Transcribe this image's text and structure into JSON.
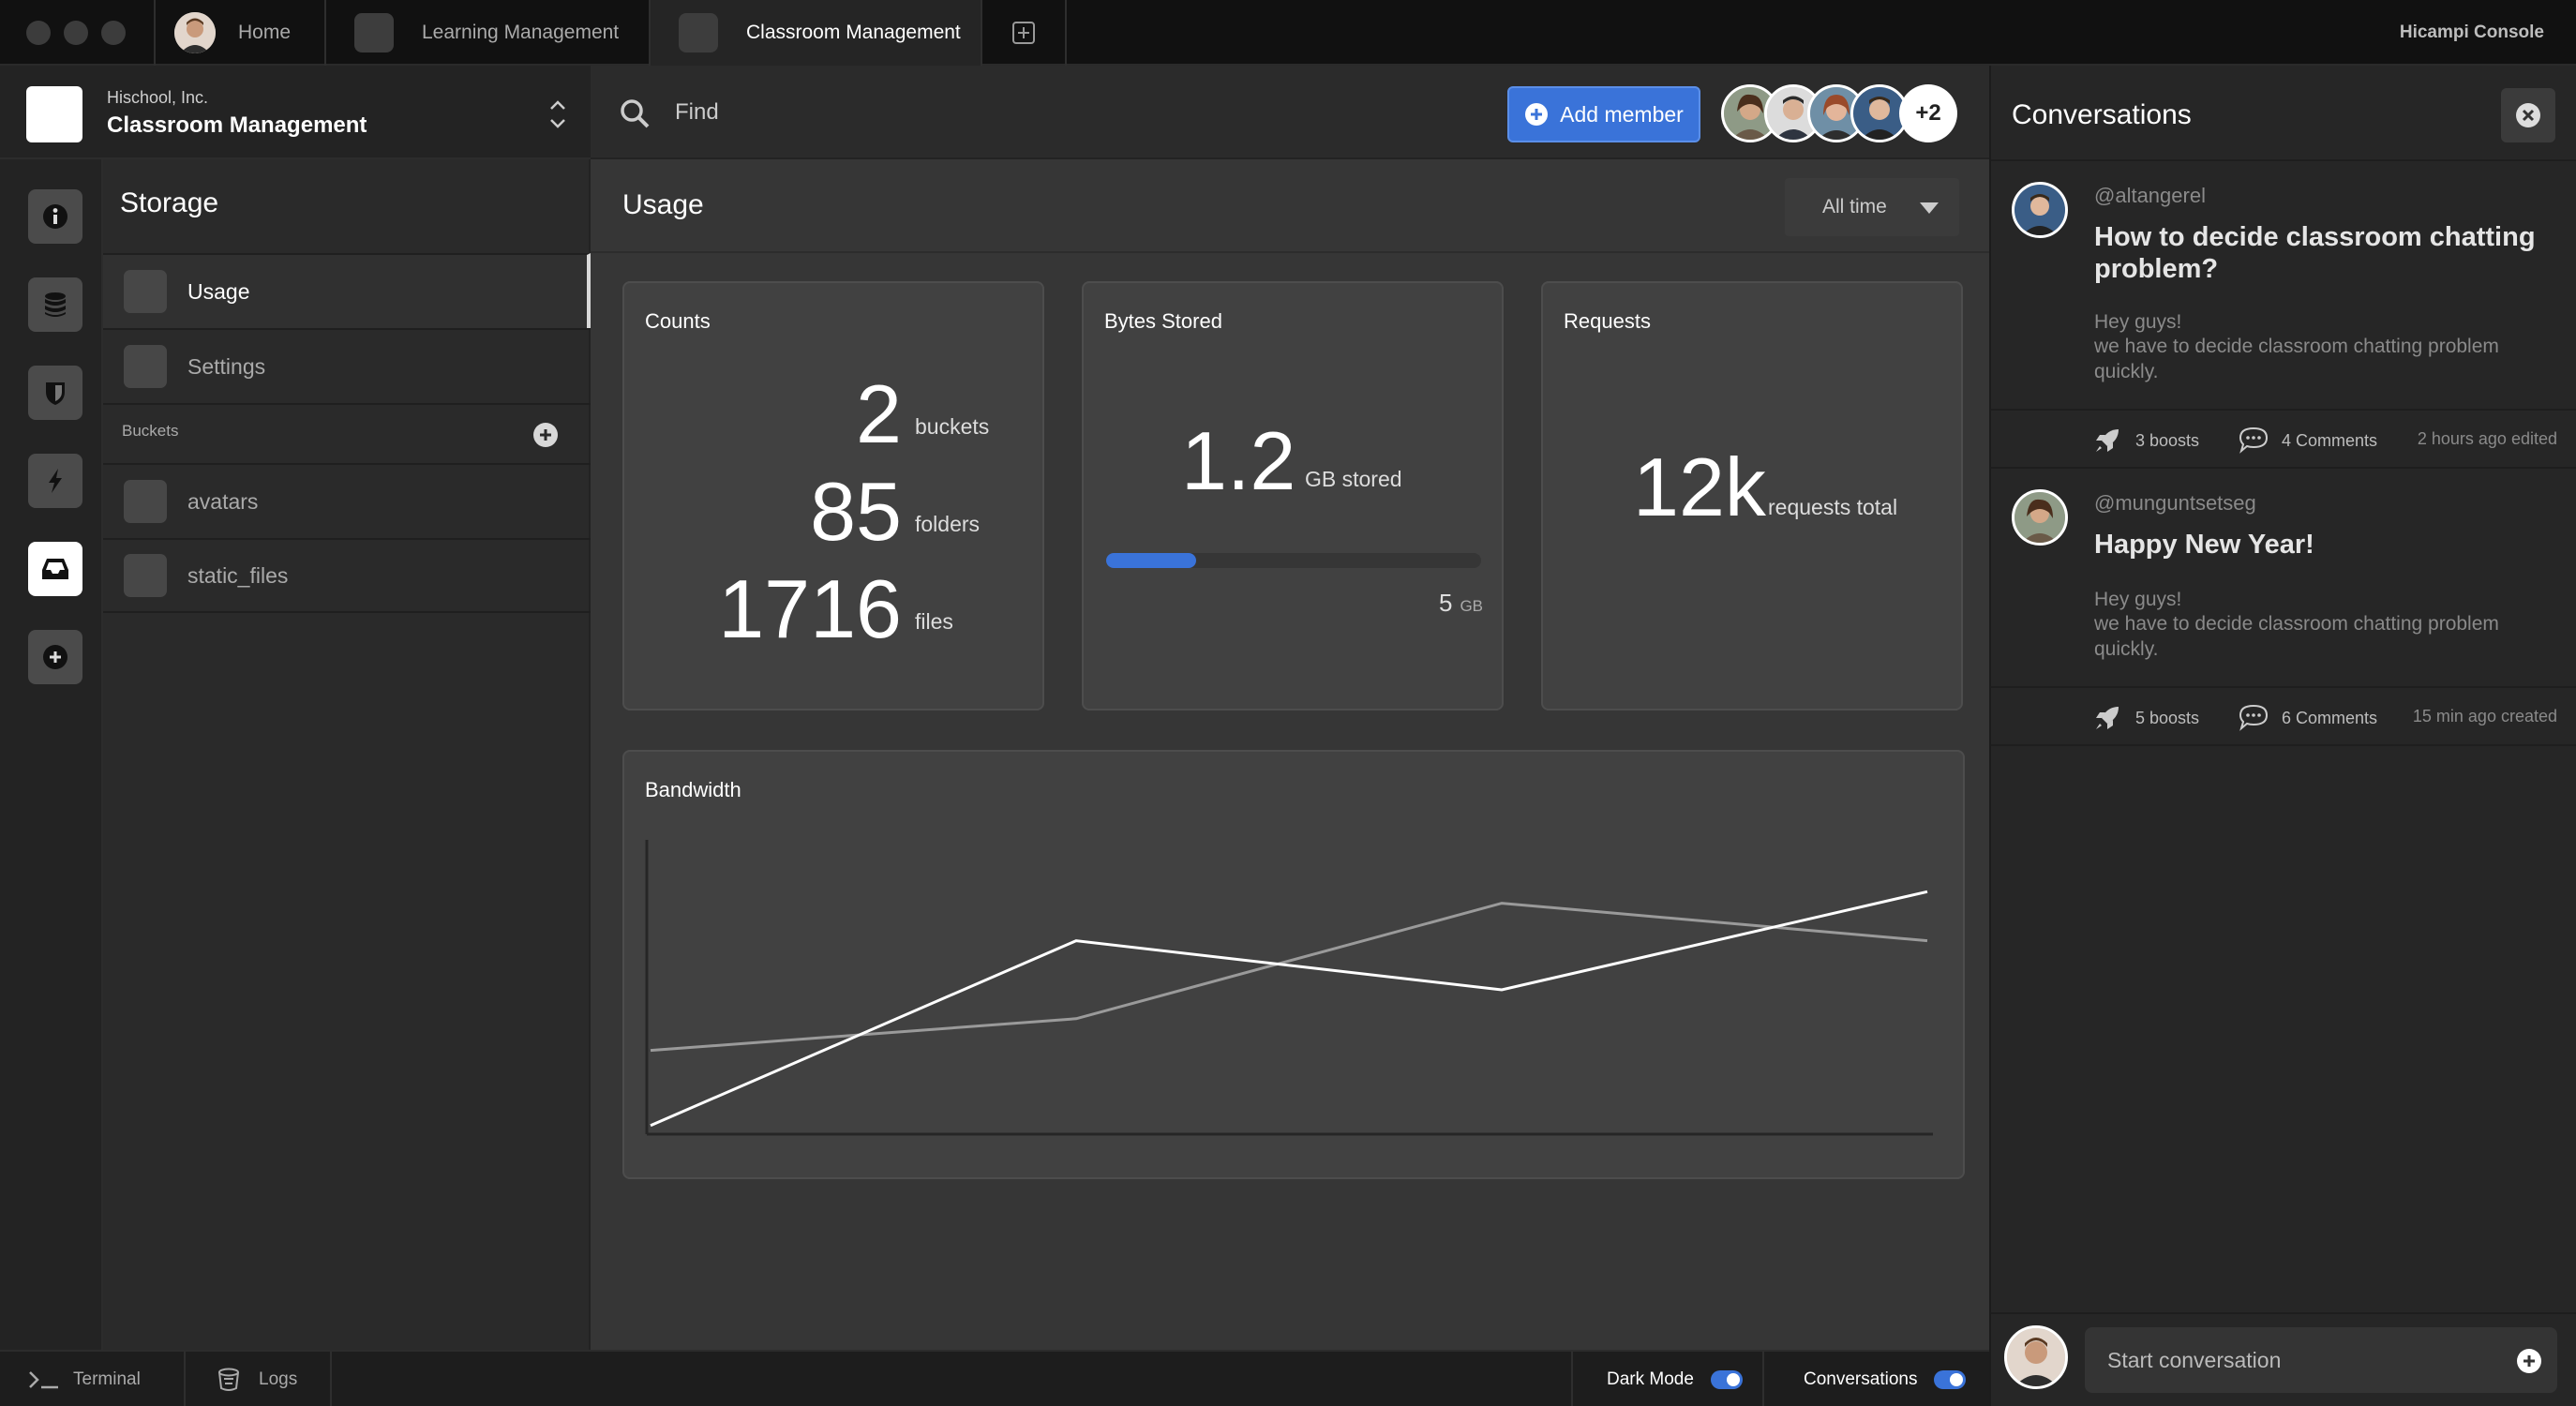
{
  "window": {
    "tabs": [
      {
        "label": "Home"
      },
      {
        "label": "Learning Management"
      },
      {
        "label": "Classroom Management"
      }
    ],
    "brand": "Hicampi Console"
  },
  "workspace": {
    "org": "Hischool, Inc.",
    "name": "Classroom Management"
  },
  "rail": {
    "icons": [
      "info-icon",
      "database-icon",
      "shield-icon",
      "bolt-icon",
      "inbox-icon",
      "plus-circle-icon"
    ],
    "active": "inbox-icon"
  },
  "storage": {
    "title": "Storage",
    "items": [
      {
        "label": "Usage"
      },
      {
        "label": "Settings"
      }
    ],
    "buckets_label": "Buckets",
    "buckets": [
      {
        "label": "avatars"
      },
      {
        "label": "static_files"
      }
    ]
  },
  "topbar": {
    "search_placeholder": "Find",
    "add_member_label": "Add member",
    "extra_members": "+2"
  },
  "usage": {
    "title": "Usage",
    "range": "All time",
    "counts": {
      "title": "Counts",
      "buckets": "2",
      "buckets_unit": "buckets",
      "folders": "85",
      "folders_unit": "folders",
      "files": "1716",
      "files_unit": "files"
    },
    "bytes": {
      "title": "Bytes Stored",
      "value": "1.2",
      "unit": "GB stored",
      "capacity": "5",
      "capacity_unit": "GB",
      "fill_fraction": 0.24
    },
    "requests": {
      "title": "Requests",
      "value": "12k",
      "unit": "requests total"
    }
  },
  "chart_data": {
    "type": "line",
    "title": "Bandwidth",
    "x": [
      0,
      1,
      2,
      3
    ],
    "ylim": [
      0,
      100
    ],
    "series": [
      {
        "values": [
          3,
          67,
          50,
          84
        ],
        "color": "#ffffff"
      },
      {
        "values": [
          29,
          40,
          80,
          67
        ],
        "color": "#9a9a9a"
      }
    ]
  },
  "conversations": {
    "title": "Conversations",
    "posts": [
      {
        "handle": "@altangerel",
        "title": "How to decide classroom chatting problem?",
        "body_line1": "Hey guys!",
        "body_line2": "we have to decide classroom chatting problem quickly.",
        "boosts": "3 boosts",
        "comments": "4 Comments",
        "time": "2 hours ago edited"
      },
      {
        "handle": "@munguntsetseg",
        "title": "Happy New Year!",
        "body_line1": "Hey guys!",
        "body_line2": "we have to decide classroom chatting problem quickly.",
        "boosts": "5 boosts",
        "comments": "6 Comments",
        "time": "15 min ago created"
      }
    ],
    "start_placeholder": "Start conversation"
  },
  "bottombar": {
    "terminal": "Terminal",
    "logs": "Logs",
    "dark_mode": "Dark Mode",
    "conversations": "Conversations"
  }
}
